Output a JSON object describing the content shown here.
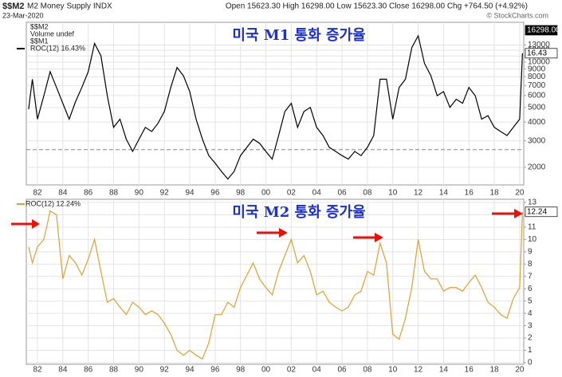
{
  "header": {
    "symbol": "$$M2",
    "name": "M2 Money Supply INDX",
    "date": "23-Mar-2020",
    "quote": "Open 15623.30 High 16298.00 Low 15623.30 Close 16298.00 Chg +764.50 (+4.92%)",
    "credit": "© StockCharts.com"
  },
  "chart_data": [
    {
      "type": "line",
      "title": "미국 M1 통화 증가율",
      "legend_items": [
        "$$M2",
        "Volume undef",
        "$$M1"
      ],
      "log_scale": true,
      "grid": true,
      "x": [
        1981.3,
        1981.6,
        1982,
        1982.5,
        1983,
        1983.5,
        1984,
        1984.5,
        1985,
        1985.5,
        1986,
        1986.5,
        1987,
        1987.5,
        1988,
        1988.5,
        1989,
        1989.5,
        1990,
        1990.5,
        1991,
        1991.5,
        1992,
        1992.5,
        1993,
        1993.5,
        1994,
        1994.5,
        1995,
        1995.5,
        1996,
        1996.5,
        1997,
        1997.5,
        1998,
        1998.5,
        1999,
        1999.5,
        2000,
        2000.5,
        2001,
        2001.5,
        2002,
        2002.5,
        2003,
        2003.5,
        2004,
        2004.5,
        2005,
        2005.5,
        2006,
        2006.5,
        2007,
        2007.5,
        2008,
        2008.5,
        2009,
        2009.5,
        2010,
        2010.5,
        2011,
        2011.5,
        2012,
        2012.5,
        2013,
        2013.5,
        2014,
        2014.5,
        2015,
        2015.5,
        2016,
        2016.5,
        2017,
        2017.5,
        2018,
        2018.5,
        2019,
        2019.5,
        2020,
        2020.22
      ],
      "series": [
        {
          "name": "ROC(12) 16.43%",
          "color": "#000000",
          "axis": "y2",
          "values": [
            6.9,
            12,
            5.2,
            9.2,
            13.3,
            10.6,
            7.9,
            5.2,
            8.2,
            10.6,
            13.3,
            18.1,
            16.0,
            9.2,
            3.8,
            5.2,
            1.8,
            -0.3,
            1.8,
            3.8,
            3.1,
            4.5,
            6.5,
            10.6,
            14.0,
            12.6,
            9.9,
            5.2,
            1.8,
            -1.0,
            -2.3,
            -3.7,
            -5.0,
            -3.7,
            -1.0,
            0.4,
            1.8,
            1.1,
            -0.3,
            -1.6,
            2.4,
            6.5,
            7.9,
            3.8,
            6.5,
            7.2,
            3.8,
            2.4,
            0.4,
            -0.3,
            -1.0,
            -1.6,
            -0.3,
            -1.0,
            0.4,
            2.4,
            12.0,
            12.0,
            5.2,
            10.6,
            12.0,
            17.4,
            19.4,
            14.7,
            12.6,
            9.2,
            9.9,
            7.2,
            8.6,
            7.9,
            10.6,
            9.2,
            5.2,
            5.8,
            3.8,
            3.1,
            2.4,
            3.8,
            5.2,
            16.43
          ]
        }
      ],
      "xlim": [
        1981.12,
        2020.32
      ],
      "xticks": [
        {
          "value": 1982,
          "label": "82"
        },
        {
          "value": 1984,
          "label": "84"
        },
        {
          "value": 1986,
          "label": "86"
        },
        {
          "value": 1988,
          "label": "88"
        },
        {
          "value": 1990,
          "label": "90"
        },
        {
          "value": 1992,
          "label": "92"
        },
        {
          "value": 1994,
          "label": "94"
        },
        {
          "value": 1996,
          "label": "96"
        },
        {
          "value": 1998,
          "label": "98"
        },
        {
          "value": 2000,
          "label": "00"
        },
        {
          "value": 2002,
          "label": "02"
        },
        {
          "value": 2004,
          "label": "04"
        },
        {
          "value": 2006,
          "label": "06"
        },
        {
          "value": 2008,
          "label": "08"
        },
        {
          "value": 2010,
          "label": "10"
        },
        {
          "value": 2012,
          "label": "12"
        },
        {
          "value": 2014,
          "label": "14"
        },
        {
          "value": 2016,
          "label": "16"
        },
        {
          "value": 2018,
          "label": "18"
        },
        {
          "value": 2020,
          "label": "20"
        }
      ],
      "ylim": [
        1530,
        18400
      ],
      "yticks": [
        2000,
        3000,
        4000,
        5000,
        6000,
        7000,
        8000,
        9000,
        10000,
        11000,
        12000,
        13000
      ],
      "y2lim": [
        -6,
        21.7
      ],
      "y2_reference": 0,
      "markers": [
        {
          "value": 16298,
          "label": "16298.00",
          "fill": "#000000"
        },
        {
          "value": 16.43,
          "label": "16.43",
          "axis": "y2",
          "fill": "#ffffff"
        }
      ]
    },
    {
      "type": "line",
      "title": "미국 M2 통화 증가율",
      "grid": true,
      "x": [
        1981.3,
        1981.6,
        1982,
        1982.5,
        1983,
        1983.5,
        1984,
        1984.5,
        1985,
        1985.5,
        1986,
        1986.5,
        1987,
        1987.5,
        1988,
        1988.5,
        1989,
        1989.5,
        1990,
        1990.5,
        1991,
        1991.5,
        1992,
        1992.5,
        1993,
        1993.5,
        1994,
        1994.5,
        1995,
        1995.5,
        1996,
        1996.5,
        1997,
        1997.5,
        1998,
        1998.5,
        1999,
        1999.5,
        2000,
        2000.5,
        2001,
        2001.5,
        2002,
        2002.5,
        2003,
        2003.5,
        2004,
        2004.5,
        2005,
        2005.5,
        2006,
        2006.5,
        2007,
        2007.5,
        2008,
        2008.5,
        2009,
        2009.5,
        2010,
        2010.5,
        2011,
        2011.5,
        2012,
        2012.5,
        2013,
        2013.5,
        2014,
        2014.5,
        2015,
        2015.5,
        2016,
        2016.5,
        2017,
        2017.5,
        2018,
        2018.5,
        2019,
        2019.5,
        2020,
        2020.22
      ],
      "series": [
        {
          "name": "ROC(12) 12.24%",
          "color": "#e0a030",
          "values": [
            9.4,
            8.1,
            9.4,
            10.0,
            12.3,
            12.0,
            6.8,
            8.7,
            8.1,
            7.1,
            8.4,
            10.0,
            7.4,
            4.9,
            5.2,
            4.5,
            3.9,
            4.9,
            4.5,
            3.9,
            4.2,
            3.9,
            3.2,
            2.3,
            1.0,
            0.6,
            1.0,
            0.6,
            0.3,
            1.6,
            3.9,
            3.9,
            4.9,
            4.5,
            6.1,
            7.1,
            8.1,
            6.8,
            6.1,
            5.5,
            7.4,
            8.7,
            10.0,
            8.1,
            8.7,
            7.4,
            5.5,
            5.8,
            4.9,
            4.5,
            4.2,
            4.5,
            5.5,
            5.8,
            7.4,
            7.1,
            9.7,
            8.1,
            2.3,
            1.9,
            3.6,
            6.1,
            10.0,
            7.4,
            6.8,
            6.8,
            5.8,
            6.1,
            6.1,
            5.8,
            6.5,
            7.1,
            6.1,
            4.9,
            4.5,
            3.9,
            3.6,
            5.2,
            6.1,
            12.24
          ]
        }
      ],
      "xlim": [
        1981.12,
        2020.32
      ],
      "xticks": [
        {
          "value": 1982,
          "label": "82"
        },
        {
          "value": 1984,
          "label": "84"
        },
        {
          "value": 1986,
          "label": "86"
        },
        {
          "value": 1988,
          "label": "88"
        },
        {
          "value": 1990,
          "label": "90"
        },
        {
          "value": 1992,
          "label": "92"
        },
        {
          "value": 1994,
          "label": "94"
        },
        {
          "value": 1996,
          "label": "96"
        },
        {
          "value": 1998,
          "label": "98"
        },
        {
          "value": 2000,
          "label": "00"
        },
        {
          "value": 2002,
          "label": "02"
        },
        {
          "value": 2004,
          "label": "04"
        },
        {
          "value": 2006,
          "label": "06"
        },
        {
          "value": 2008,
          "label": "08"
        },
        {
          "value": 2010,
          "label": "10"
        },
        {
          "value": 2012,
          "label": "12"
        },
        {
          "value": 2014,
          "label": "14"
        },
        {
          "value": 2016,
          "label": "16"
        },
        {
          "value": 2018,
          "label": "18"
        },
        {
          "value": 2020,
          "label": "20"
        }
      ],
      "ylim": [
        -0.13,
        13.26
      ],
      "yticks": [
        0,
        1,
        2,
        3,
        4,
        5,
        6,
        7,
        8,
        9,
        10,
        11,
        12,
        13
      ],
      "markers": [
        {
          "value": 12.24,
          "label": "12.24",
          "fill": "#ffffff"
        }
      ]
    }
  ]
}
